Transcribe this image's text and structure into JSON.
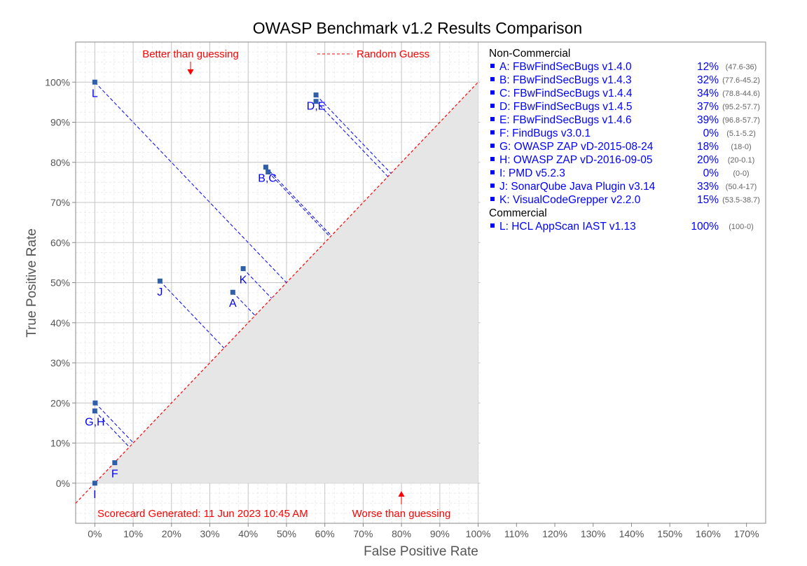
{
  "chart_data": {
    "type": "scatter",
    "title": "OWASP Benchmark v1.2 Results Comparison",
    "xlabel": "False Positive Rate",
    "ylabel": "True Positive Rate",
    "xlim": [
      -5,
      175
    ],
    "ylim": [
      -10,
      110
    ],
    "xticks": [
      "0%",
      "10%",
      "20%",
      "30%",
      "40%",
      "50%",
      "60%",
      "70%",
      "80%",
      "90%",
      "100%",
      "110%",
      "120%",
      "130%",
      "140%",
      "150%",
      "160%",
      "170%"
    ],
    "yticks": [
      "0%",
      "10%",
      "20%",
      "30%",
      "40%",
      "50%",
      "60%",
      "70%",
      "80%",
      "90%",
      "100%"
    ],
    "grid": true,
    "colors": {
      "points": "#2f5fa8",
      "labels": "#0000ff",
      "guess": "#ff0000",
      "shade": "#e6e6e6"
    },
    "random_guess_label": "Random Guess",
    "better_label": "Better than guessing",
    "worse_label": "Worse than guessing",
    "scorecard_label": "Scorecard Generated: 11 Jun 2023 10:45 AM",
    "point_labels": [
      {
        "text": "L",
        "x": 0,
        "y": 100
      },
      {
        "text": "D,E",
        "x": 57.7,
        "y": 96.8
      },
      {
        "text": "B,C",
        "x": 45,
        "y": 78.8
      },
      {
        "text": "K",
        "x": 38.7,
        "y": 53.5
      },
      {
        "text": "J",
        "x": 17,
        "y": 50.4
      },
      {
        "text": "A",
        "x": 36,
        "y": 47.6
      },
      {
        "text": "G,H",
        "x": 0,
        "y": 18
      },
      {
        "text": "F",
        "x": 5.2,
        "y": 5.1
      },
      {
        "text": "I",
        "x": 0,
        "y": 0
      }
    ],
    "series": [
      {
        "key": "A",
        "x": 36,
        "y": 47.6
      },
      {
        "key": "B",
        "x": 45.2,
        "y": 77.6
      },
      {
        "key": "C",
        "x": 44.6,
        "y": 78.8
      },
      {
        "key": "D",
        "x": 57.7,
        "y": 95.2
      },
      {
        "key": "E",
        "x": 57.7,
        "y": 96.8
      },
      {
        "key": "F",
        "x": 5.2,
        "y": 5.1
      },
      {
        "key": "G",
        "x": 0,
        "y": 18
      },
      {
        "key": "H",
        "x": 0.1,
        "y": 20
      },
      {
        "key": "I",
        "x": 0,
        "y": 0
      },
      {
        "key": "J",
        "x": 17,
        "y": 50.4
      },
      {
        "key": "K",
        "x": 38.7,
        "y": 53.5
      },
      {
        "key": "L",
        "x": 0,
        "y": 100
      }
    ],
    "legend": {
      "placement": "right",
      "groups": [
        {
          "heading": "Non-Commercial",
          "items": [
            {
              "name": "A: FBwFindSecBugs v1.4.0",
              "score": "12%",
              "detail": "(47.6-36)"
            },
            {
              "name": "B: FBwFindSecBugs v1.4.3",
              "score": "32%",
              "detail": "(77.6-45.2)"
            },
            {
              "name": "C: FBwFindSecBugs v1.4.4",
              "score": "34%",
              "detail": "(78.8-44.6)"
            },
            {
              "name": "D: FBwFindSecBugs v1.4.5",
              "score": "37%",
              "detail": "(95.2-57.7)"
            },
            {
              "name": "E: FBwFindSecBugs v1.4.6",
              "score": "39%",
              "detail": "(96.8-57.7)"
            },
            {
              "name": "F: FindBugs v3.0.1",
              "score": "0%",
              "detail": "(5.1-5.2)"
            },
            {
              "name": "G: OWASP ZAP vD-2015-08-24",
              "score": "18%",
              "detail": "(18-0)"
            },
            {
              "name": "H: OWASP ZAP vD-2016-09-05",
              "score": "20%",
              "detail": "(20-0.1)"
            },
            {
              "name": "I:  PMD v5.2.3",
              "score": "0%",
              "detail": "(0-0)"
            },
            {
              "name": "J:  SonarQube Java Plugin v3.14",
              "score": "33%",
              "detail": "(50.4-17)"
            },
            {
              "name": "K: VisualCodeGrepper v2.2.0",
              "score": "15%",
              "detail": "(53.5-38.7)"
            }
          ]
        },
        {
          "heading": "Commercial",
          "items": [
            {
              "name": "L: HCL AppScan IAST v1.13",
              "score": "100%",
              "detail": "(100-0)"
            }
          ]
        }
      ]
    }
  }
}
